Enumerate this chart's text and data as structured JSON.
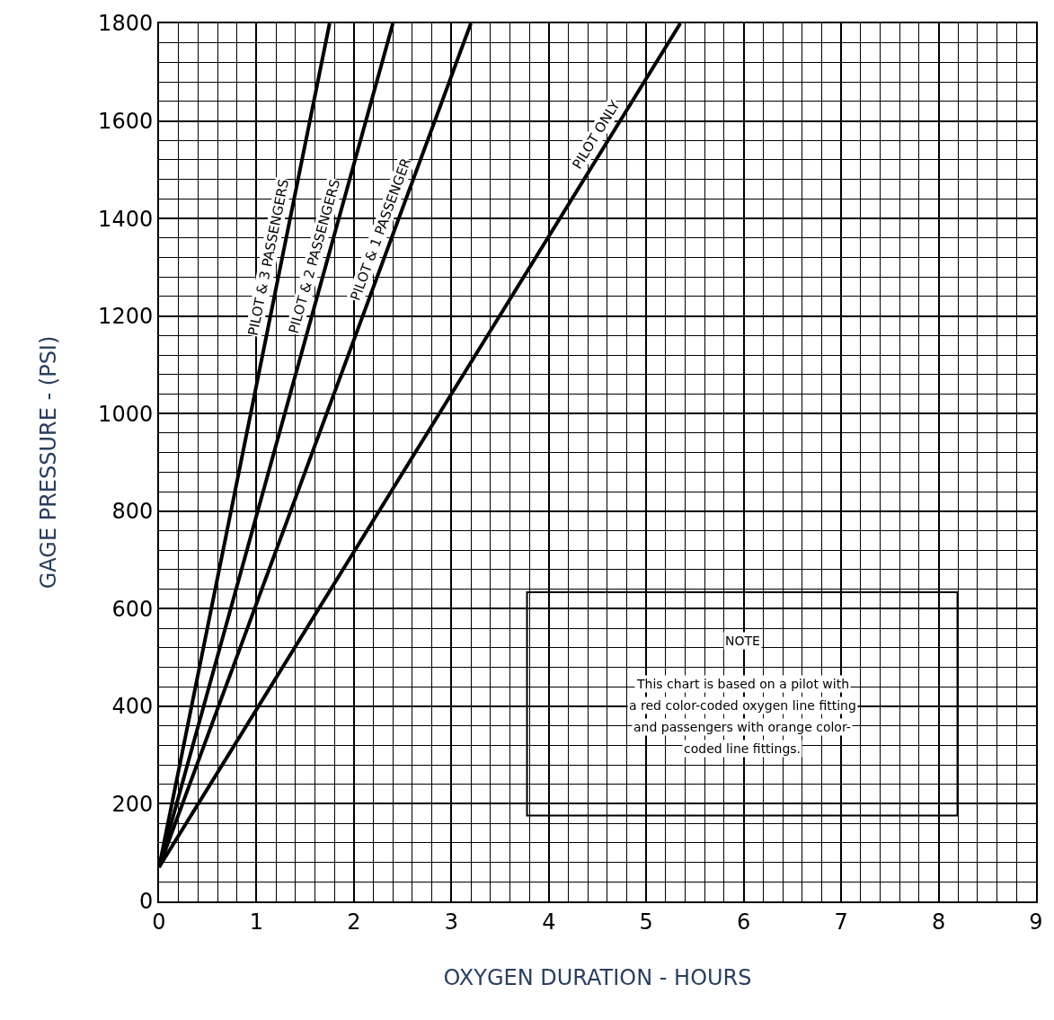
{
  "chart_data": {
    "type": "line",
    "xlabel": "OXYGEN DURATION - HOURS",
    "ylabel": "GAGE PRESSURE - (PSI)",
    "xlim": [
      0,
      9
    ],
    "xticks": [
      0,
      1,
      2,
      3,
      4,
      5,
      6,
      7,
      8,
      9
    ],
    "ylim": [
      0,
      1800
    ],
    "yticks": [
      0,
      200,
      400,
      600,
      800,
      1000,
      1200,
      1400,
      1600,
      1800
    ],
    "grid": true,
    "legend": false,
    "line_style": "solid",
    "marker": "none",
    "series": [
      {
        "name": "PILOT & 3 PASSENGERS",
        "color": "#000000",
        "x": [
          0,
          1.75
        ],
        "values": [
          70,
          1800
        ]
      },
      {
        "name": "PILOT & 2 PASSENGERS",
        "color": "#000000",
        "x": [
          0,
          2.4
        ],
        "values": [
          70,
          1800
        ]
      },
      {
        "name": "PILOT & 1 PASSENGER",
        "color": "#000000",
        "x": [
          0,
          3.2
        ],
        "values": [
          70,
          1800
        ]
      },
      {
        "name": "PILOT ONLY",
        "color": "#000000",
        "x": [
          0,
          5.35
        ],
        "values": [
          70,
          1800
        ]
      }
    ],
    "annotations": [
      "NOTE\n\nThis chart is based on a pilot with\na red color-coded oxygen line fitting\nand passengers with orange color-\ncoded line fittings."
    ]
  }
}
